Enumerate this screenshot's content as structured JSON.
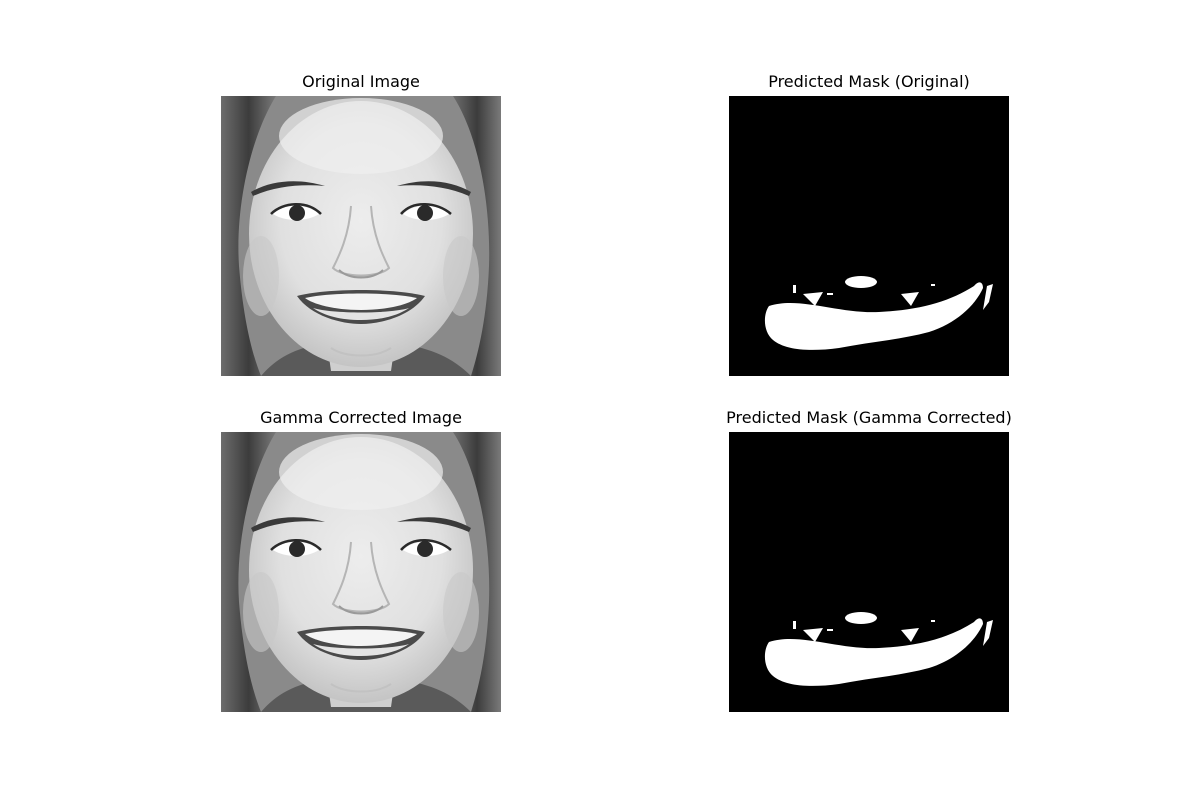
{
  "figure": {
    "panels": [
      {
        "id": "original-image",
        "title": "Original Image",
        "kind": "face-photo"
      },
      {
        "id": "predicted-mask-original",
        "title": "Predicted Mask (Original)",
        "kind": "binary-mask"
      },
      {
        "id": "gamma-corrected-image",
        "title": "Gamma Corrected Image",
        "kind": "face-photo"
      },
      {
        "id": "predicted-mask-gamma",
        "title": "Predicted Mask (Gamma Corrected)",
        "kind": "binary-mask"
      }
    ]
  },
  "colors": {
    "mask_background": "#000000",
    "mask_foreground": "#ffffff",
    "page_background": "#ffffff"
  }
}
